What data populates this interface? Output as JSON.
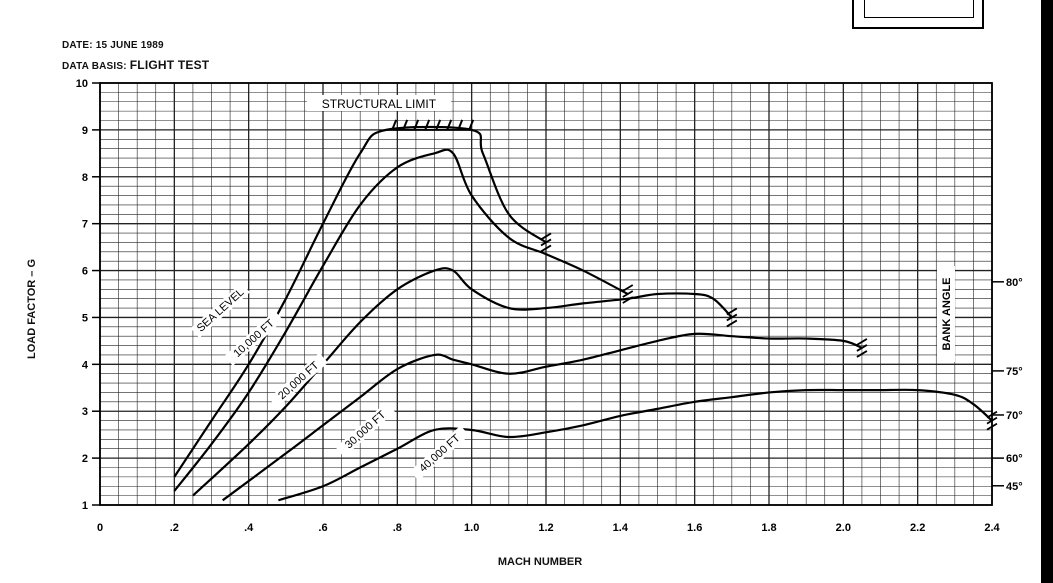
{
  "header": {
    "date_label": "DATE:",
    "date_value": "15 JUNE 1989",
    "basis_label": "DATA BASIS:",
    "basis_value": "FLIGHT TEST"
  },
  "chart_data": {
    "type": "line",
    "title": "",
    "xlabel": "MACH NUMBER",
    "ylabel": "LOAD FACTOR – G",
    "xlim": [
      0,
      2.4
    ],
    "ylim": [
      1,
      10
    ],
    "grid": true,
    "x_ticks": [
      "0",
      ".2",
      ".4",
      ".6",
      ".8",
      "1.0",
      "1.2",
      "1.4",
      "1.6",
      "1.8",
      "2.0",
      "2.2",
      "2.4"
    ],
    "y_ticks": [
      "1",
      "2",
      "3",
      "4",
      "5",
      "6",
      "7",
      "8",
      "9",
      "10"
    ],
    "structural_limit": {
      "label": "STRUCTURAL LIMIT",
      "load_factor": 9,
      "mach_from": 0.77,
      "mach_to": 1.0
    },
    "bank_angle": {
      "label": "BANK ANGLE",
      "marks": [
        {
          "label": "80°",
          "load_factor": 5.76
        },
        {
          "label": "75°",
          "load_factor": 3.86
        },
        {
          "label": "70°",
          "load_factor": 2.92
        },
        {
          "label": "60°",
          "load_factor": 2.0
        },
        {
          "label": "45°",
          "load_factor": 1.41
        }
      ]
    },
    "series": [
      {
        "name": "SEA LEVEL",
        "label_at": [
          0.33,
          5.1
        ],
        "points": [
          [
            0.2,
            1.6
          ],
          [
            0.3,
            2.8
          ],
          [
            0.4,
            4.0
          ],
          [
            0.5,
            5.4
          ],
          [
            0.6,
            7.0
          ],
          [
            0.7,
            8.5
          ],
          [
            0.77,
            9.0
          ],
          [
            1.0,
            9.0
          ],
          [
            1.03,
            8.5
          ],
          [
            1.1,
            7.2
          ],
          [
            1.2,
            6.6
          ]
        ]
      },
      {
        "name": "10,000 FT",
        "label_at": [
          0.42,
          4.5
        ],
        "points": [
          [
            0.2,
            1.3
          ],
          [
            0.3,
            2.3
          ],
          [
            0.4,
            3.4
          ],
          [
            0.5,
            4.7
          ],
          [
            0.6,
            6.1
          ],
          [
            0.7,
            7.4
          ],
          [
            0.8,
            8.2
          ],
          [
            0.9,
            8.5
          ],
          [
            0.95,
            8.5
          ],
          [
            1.0,
            7.6
          ],
          [
            1.1,
            6.7
          ],
          [
            1.2,
            6.35
          ],
          [
            1.3,
            6.0
          ],
          [
            1.42,
            5.5
          ]
        ]
      },
      {
        "name": "20,000 FT",
        "label_at": [
          0.54,
          3.6
        ],
        "points": [
          [
            0.25,
            1.2
          ],
          [
            0.4,
            2.3
          ],
          [
            0.5,
            3.1
          ],
          [
            0.6,
            4.0
          ],
          [
            0.7,
            4.9
          ],
          [
            0.8,
            5.6
          ],
          [
            0.9,
            6.0
          ],
          [
            0.95,
            6.0
          ],
          [
            1.0,
            5.6
          ],
          [
            1.1,
            5.2
          ],
          [
            1.2,
            5.2
          ],
          [
            1.3,
            5.3
          ],
          [
            1.42,
            5.4
          ],
          [
            1.5,
            5.5
          ],
          [
            1.6,
            5.5
          ],
          [
            1.65,
            5.4
          ],
          [
            1.7,
            5.0
          ]
        ]
      },
      {
        "name": "30,000 FT",
        "label_at": [
          0.72,
          2.55
        ],
        "points": [
          [
            0.33,
            1.1
          ],
          [
            0.5,
            2.1
          ],
          [
            0.6,
            2.7
          ],
          [
            0.7,
            3.3
          ],
          [
            0.8,
            3.9
          ],
          [
            0.9,
            4.2
          ],
          [
            0.95,
            4.1
          ],
          [
            1.0,
            4.0
          ],
          [
            1.1,
            3.8
          ],
          [
            1.2,
            3.95
          ],
          [
            1.3,
            4.1
          ],
          [
            1.4,
            4.3
          ],
          [
            1.5,
            4.5
          ],
          [
            1.6,
            4.65
          ],
          [
            1.7,
            4.6
          ],
          [
            1.8,
            4.55
          ],
          [
            1.9,
            4.55
          ],
          [
            2.0,
            4.5
          ],
          [
            2.05,
            4.35
          ]
        ]
      },
      {
        "name": "40,000 FT",
        "label_at": [
          0.92,
          2.05
        ],
        "points": [
          [
            0.48,
            1.1
          ],
          [
            0.6,
            1.4
          ],
          [
            0.7,
            1.8
          ],
          [
            0.8,
            2.2
          ],
          [
            0.9,
            2.6
          ],
          [
            1.0,
            2.6
          ],
          [
            1.1,
            2.45
          ],
          [
            1.2,
            2.55
          ],
          [
            1.3,
            2.7
          ],
          [
            1.4,
            2.9
          ],
          [
            1.5,
            3.05
          ],
          [
            1.6,
            3.2
          ],
          [
            1.7,
            3.3
          ],
          [
            1.8,
            3.4
          ],
          [
            1.9,
            3.45
          ],
          [
            2.0,
            3.45
          ],
          [
            2.1,
            3.45
          ],
          [
            2.2,
            3.45
          ],
          [
            2.3,
            3.35
          ],
          [
            2.35,
            3.15
          ],
          [
            2.4,
            2.8
          ]
        ]
      }
    ]
  }
}
